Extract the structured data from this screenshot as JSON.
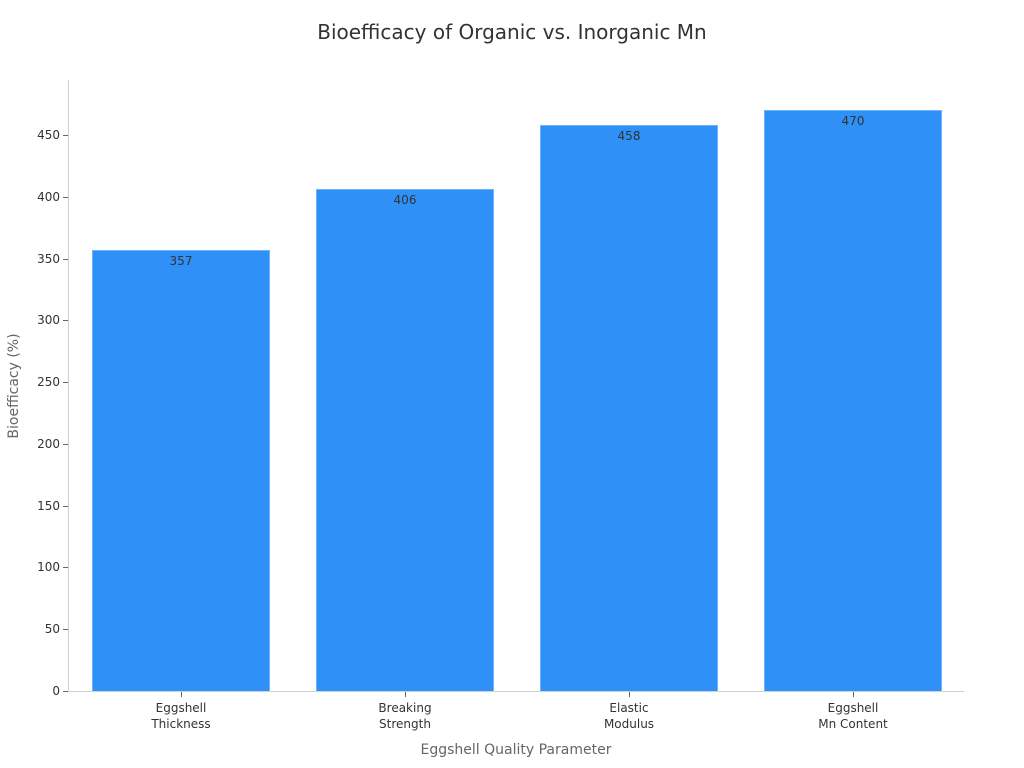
{
  "chart_data": {
    "type": "bar",
    "title": "Bioefficacy of Organic vs. Inorganic Mn",
    "xlabel": "Eggshell Quality Parameter",
    "ylabel": "Bioefficacy (%)",
    "categories": [
      "Eggshell\nThickness",
      "Breaking\nStrength",
      "Elastic\nModulus",
      "Eggshell\nMn Content"
    ],
    "values": [
      357,
      406,
      458,
      470
    ],
    "data_labels": [
      "357",
      "406",
      "458",
      "470"
    ],
    "yticks": [
      "0",
      "50",
      "100",
      "150",
      "200",
      "250",
      "300",
      "350",
      "400",
      "450"
    ],
    "ylim": [
      0,
      495
    ],
    "grid": false,
    "legend": null,
    "bar_color": "#2f91f7"
  }
}
